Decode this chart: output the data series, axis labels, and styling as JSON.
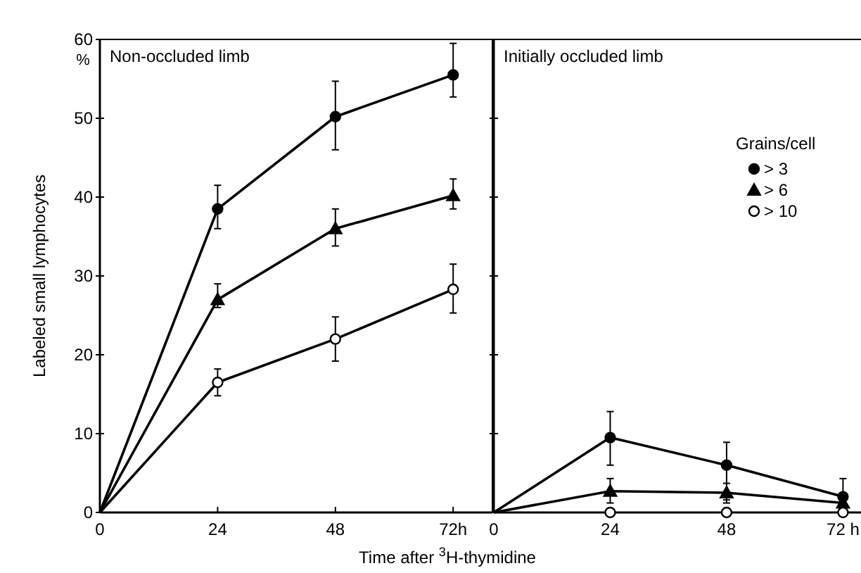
{
  "chart_data": [
    {
      "type": "line",
      "title": "Non-occluded limb",
      "ylabel": "Labeled small lymphocytes",
      "xlabel": "Time after $^{3}$H-thymidine",
      "annotations": [
        "%"
      ],
      "x": [
        0,
        24,
        48,
        72
      ],
      "xlim": [
        0,
        80
      ],
      "xticks": [
        0,
        24,
        48,
        {
          "value": 72,
          "label": "72h"
        }
      ],
      "ylim": [
        0,
        60
      ],
      "yticks": [
        0,
        10,
        20,
        30,
        40,
        50,
        60
      ],
      "grid": false,
      "legend": false,
      "series": [
        {
          "color": "#000000",
          "marker": "circle",
          "values": [
            0,
            38.5,
            50.2,
            55.5
          ],
          "errors": [
            null,
            [
              36,
              41.5
            ],
            [
              46,
              54.7
            ],
            [
              52.7,
              59.5
            ]
          ]
        },
        {
          "color": "#000000",
          "marker": "triangle",
          "values": [
            0,
            27,
            36,
            40.2
          ],
          "errors": [
            null,
            [
              26,
              29
            ],
            [
              33.8,
              38.5
            ],
            [
              38.5,
              42.3
            ]
          ]
        },
        {
          "color": "#ffffff",
          "marker": "circle",
          "values": [
            0,
            16.5,
            22,
            28.3
          ],
          "errors": [
            null,
            [
              14.8,
              18.2
            ],
            [
              19.2,
              24.8
            ],
            [
              25.3,
              31.5
            ]
          ]
        }
      ]
    },
    {
      "type": "line",
      "title": "Initially occluded limb",
      "legend_title": "Grains/cell",
      "x": [
        0,
        24,
        48,
        72
      ],
      "xlim": [
        0,
        76
      ],
      "xticks": [
        0,
        24,
        48,
        {
          "value": 72,
          "label": "72 h"
        }
      ],
      "ylim": [
        0,
        60
      ],
      "yticks": [
        0,
        10,
        20,
        30,
        40,
        50,
        60
      ],
      "tick_labels": "x",
      "grid": false,
      "legend": "top right",
      "series": [
        {
          "name": "> 3",
          "color": "#000000",
          "marker": "circle",
          "values": [
            0,
            9.5,
            6,
            2
          ],
          "errors": [
            null,
            [
              6,
              12.8
            ],
            [
              1.6,
              8.9
            ],
            [
              0,
              4.3
            ]
          ]
        },
        {
          "name": "> 6",
          "color": "#000000",
          "marker": "triangle",
          "values": [
            0,
            2.7,
            2.5,
            1.2
          ],
          "errors": [
            null,
            [
              1.2,
              4.3
            ],
            [
              1.2,
              3.7
            ],
            null
          ]
        },
        {
          "name": "> 10",
          "type": "scatter",
          "color": "#ffffff",
          "marker": "circle",
          "x": [
            24,
            48,
            72
          ],
          "values": [
            0,
            0,
            0
          ]
        }
      ]
    }
  ]
}
